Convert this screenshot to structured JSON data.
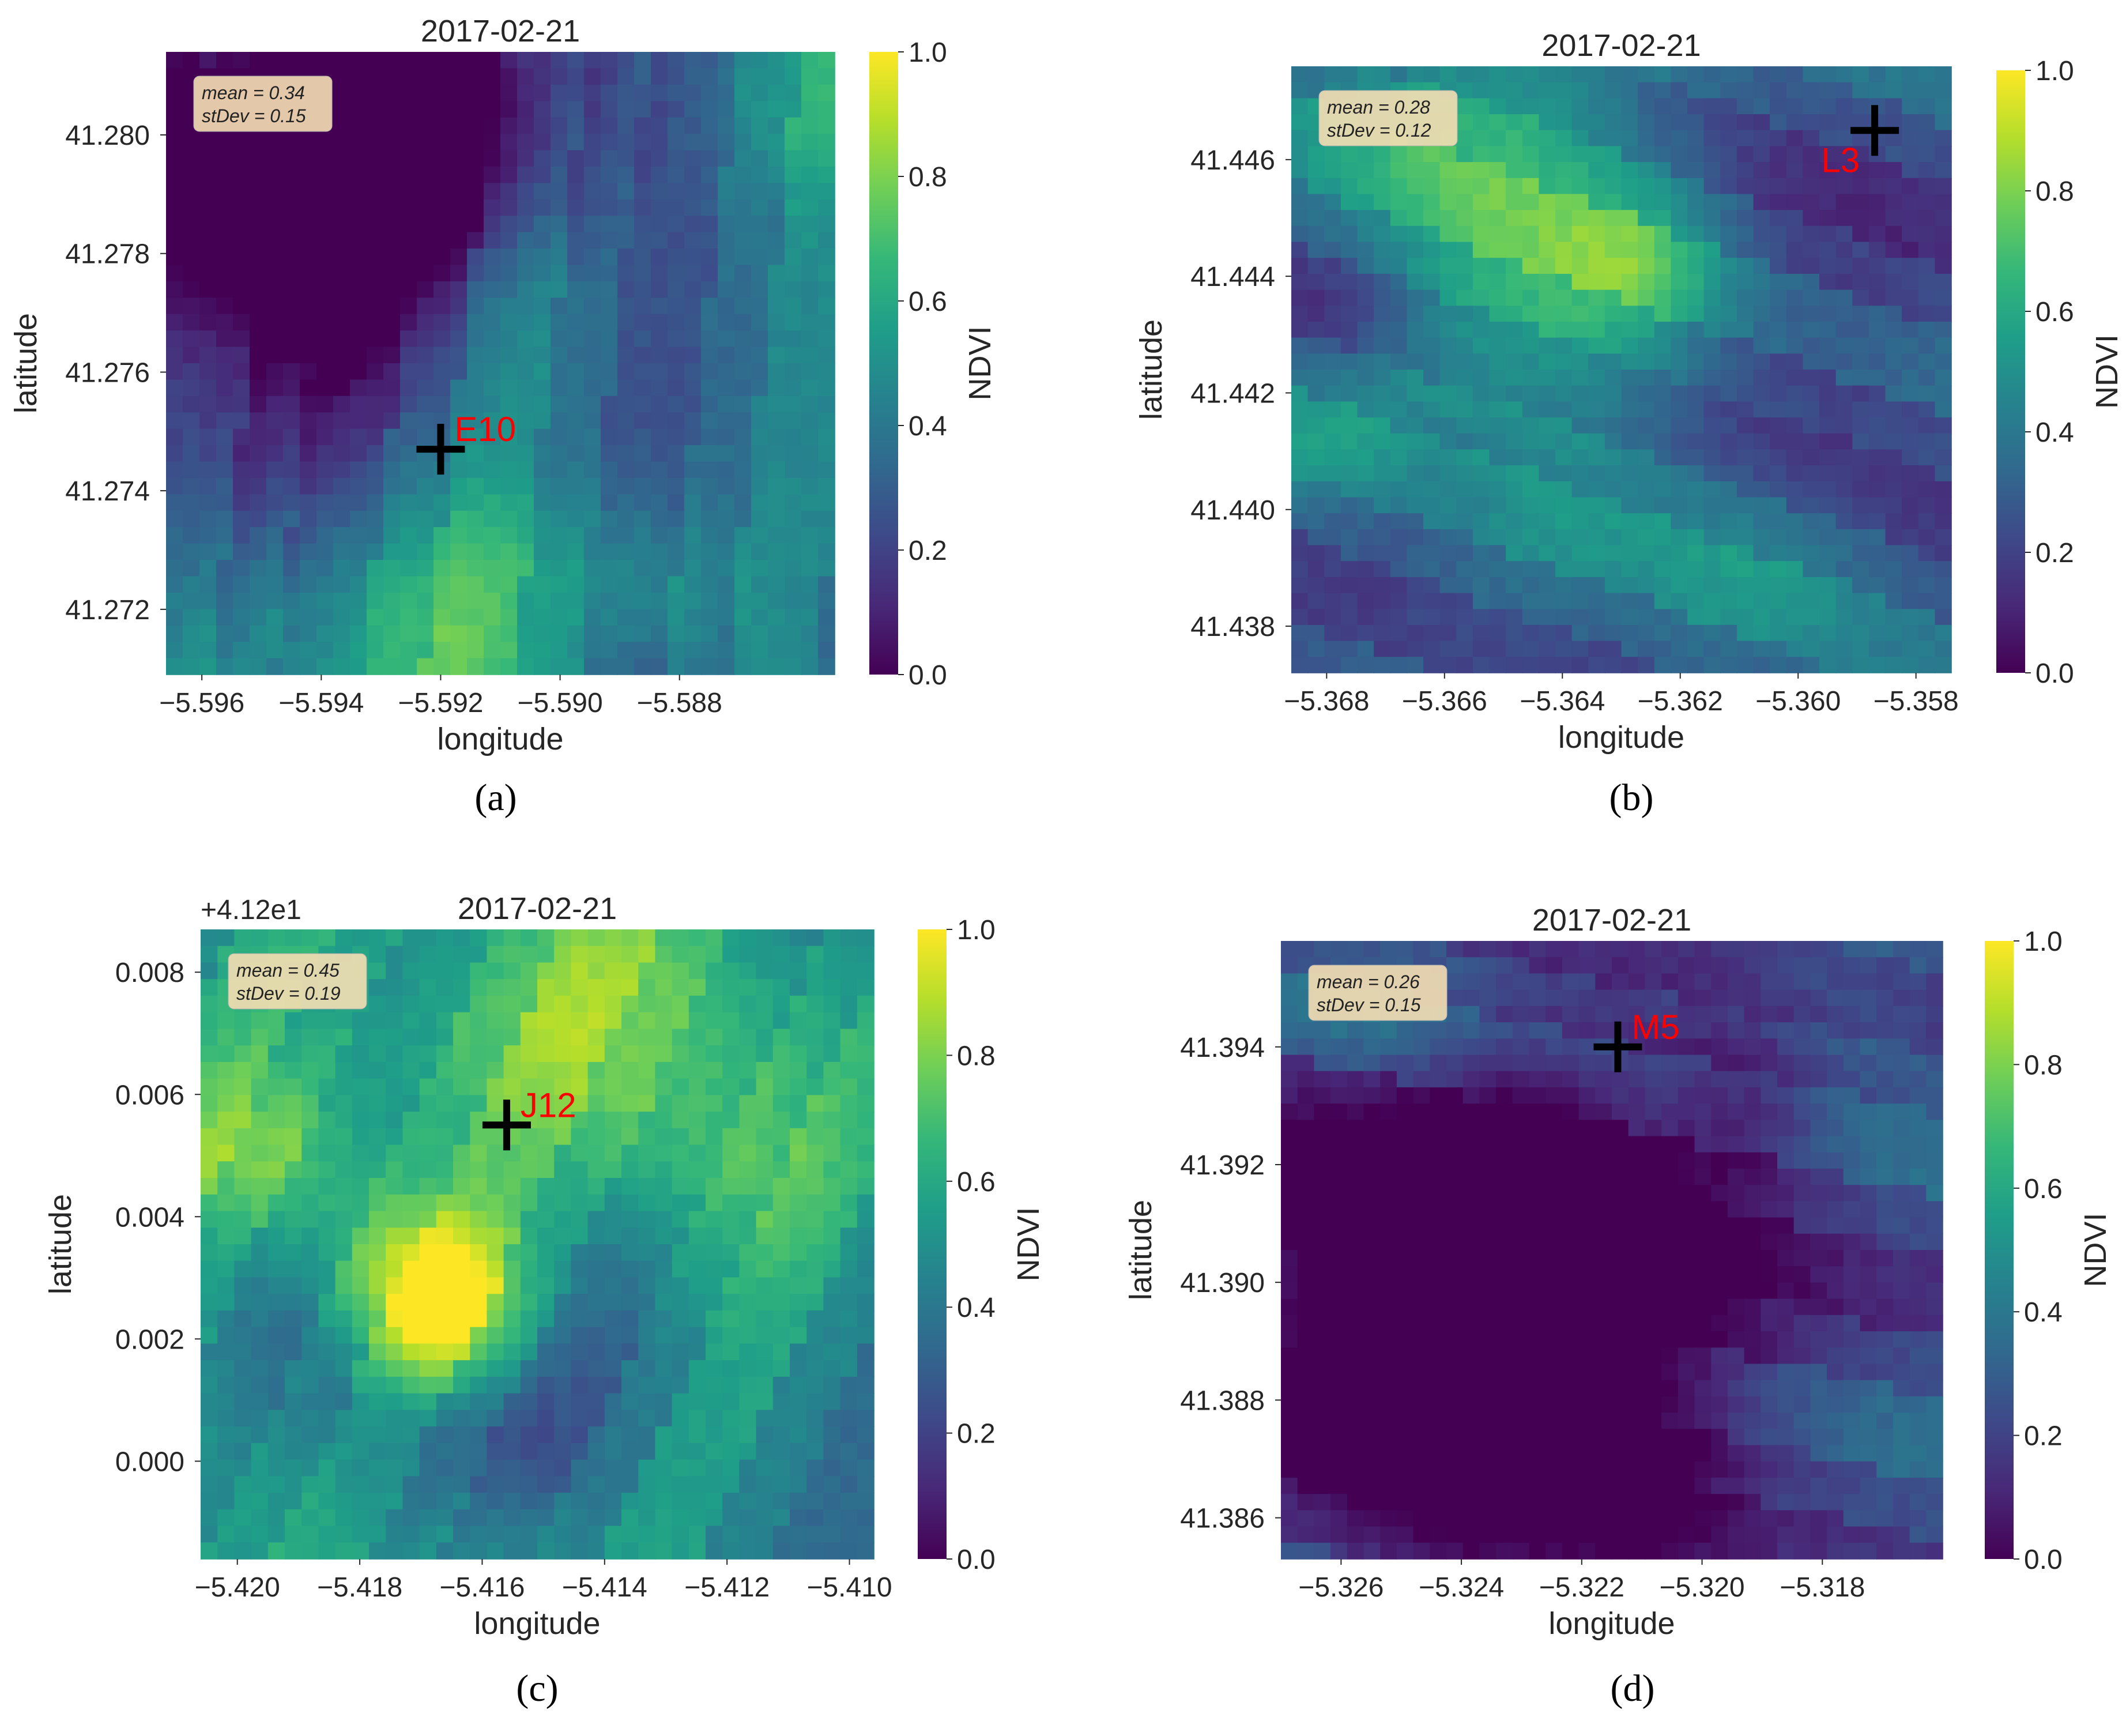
{
  "figure": {
    "colors": {
      "viridis": [
        "#440154",
        "#482878",
        "#3e4989",
        "#31688e",
        "#26828e",
        "#1f9e89",
        "#35b779",
        "#6ece58",
        "#b5de2b",
        "#fde725"
      ],
      "marker": "#000000",
      "marker_label": "#ff0000",
      "stats_box": "#f5deb3"
    }
  },
  "chart_data": [
    {
      "type": "heatmap",
      "title": "2017-02-21",
      "xlabel": "longitude",
      "ylabel": "latitude",
      "colorbar_label": "NDVI",
      "caption": "(a)",
      "xlim": [
        -5.5966,
        -5.5854
      ],
      "ylim": [
        41.2709,
        41.2814
      ],
      "xticks": [
        -5.596,
        -5.594,
        -5.592,
        -5.59,
        -5.588
      ],
      "xtick_labels": [
        "−5.596",
        "−5.594",
        "−5.592",
        "−5.590",
        "−5.588"
      ],
      "yticks": [
        41.272,
        41.274,
        41.276,
        41.278,
        41.28
      ],
      "ytick_labels": [
        "41.272",
        "41.274",
        "41.276",
        "41.278",
        "41.280"
      ],
      "y_offset_label": "",
      "colorbar_range": [
        0.0,
        1.0
      ],
      "colorbar_ticks": [
        "0.0",
        "0.2",
        "0.4",
        "0.6",
        "0.8",
        "1.0"
      ],
      "stats": {
        "mean": "mean = 0.34",
        "stdev": "stDev = 0.15"
      },
      "marker": {
        "label": "E10",
        "lon": -5.592,
        "lat": 41.2747
      },
      "grid": false,
      "seed": 11
    },
    {
      "type": "heatmap",
      "title": "2017-02-21",
      "xlabel": "longitude",
      "ylabel": "latitude",
      "colorbar_label": "NDVI",
      "caption": "(b)",
      "xlim": [
        -5.3686,
        -5.3574
      ],
      "ylim": [
        41.4372,
        41.4476
      ],
      "xticks": [
        -5.368,
        -5.366,
        -5.364,
        -5.362,
        -5.36,
        -5.358
      ],
      "xtick_labels": [
        "−5.368",
        "−5.366",
        "−5.364",
        "−5.362",
        "−5.360",
        "−5.358"
      ],
      "yticks": [
        41.438,
        41.44,
        41.442,
        41.444,
        41.446
      ],
      "ytick_labels": [
        "41.438",
        "41.440",
        "41.442",
        "41.444",
        "41.446"
      ],
      "y_offset_label": "",
      "colorbar_range": [
        0.0,
        1.0
      ],
      "colorbar_ticks": [
        "0.0",
        "0.2",
        "0.4",
        "0.6",
        "0.8",
        "1.0"
      ],
      "stats": {
        "mean": "mean = 0.28",
        "stdev": "stDev = 0.12"
      },
      "marker": {
        "label": "L3",
        "lon": -5.3587,
        "lat": 41.4465
      },
      "grid": false,
      "seed": 23
    },
    {
      "type": "heatmap",
      "title": "2017-02-21",
      "xlabel": "longitude",
      "ylabel": "latitude",
      "colorbar_label": "NDVI",
      "caption": "(c)",
      "xlim": [
        -5.4206,
        -5.4096
      ],
      "ylim": [
        -0.0016,
        0.0087
      ],
      "xticks": [
        -5.42,
        -5.418,
        -5.416,
        -5.414,
        -5.412,
        -5.41
      ],
      "xtick_labels": [
        "−5.420",
        "−5.418",
        "−5.416",
        "−5.414",
        "−5.412",
        "−5.410"
      ],
      "yticks": [
        0.0,
        0.002,
        0.004,
        0.006,
        0.008
      ],
      "ytick_labels": [
        "0.000",
        "0.002",
        "0.004",
        "0.006",
        "0.008"
      ],
      "y_offset_label": "+4.12e1",
      "colorbar_range": [
        0.0,
        1.0
      ],
      "colorbar_ticks": [
        "0.0",
        "0.2",
        "0.4",
        "0.6",
        "0.8",
        "1.0"
      ],
      "stats": {
        "mean": "mean = 0.45",
        "stdev": "stDev = 0.19"
      },
      "marker": {
        "label": "J12",
        "lon": -5.4156,
        "lat": 0.0055
      },
      "grid": false,
      "seed": 37
    },
    {
      "type": "heatmap",
      "title": "2017-02-21",
      "xlabel": "longitude",
      "ylabel": "latitude",
      "colorbar_label": "NDVI",
      "caption": "(d)",
      "xlim": [
        -5.327,
        -5.316
      ],
      "ylim": [
        41.3853,
        41.3958
      ],
      "xticks": [
        -5.326,
        -5.324,
        -5.322,
        -5.32,
        -5.318
      ],
      "xtick_labels": [
        "−5.326",
        "−5.324",
        "−5.322",
        "−5.320",
        "−5.318"
      ],
      "yticks": [
        41.386,
        41.388,
        41.39,
        41.392,
        41.394
      ],
      "ytick_labels": [
        "41.386",
        "41.388",
        "41.390",
        "41.392",
        "41.394"
      ],
      "y_offset_label": "",
      "colorbar_range": [
        0.0,
        1.0
      ],
      "colorbar_ticks": [
        "0.0",
        "0.2",
        "0.4",
        "0.6",
        "0.8",
        "1.0"
      ],
      "stats": {
        "mean": "mean = 0.26",
        "stdev": "stDev = 0.15"
      },
      "marker": {
        "label": "M5",
        "lon": -5.3214,
        "lat": 41.394
      },
      "grid": false,
      "seed": 53
    }
  ]
}
